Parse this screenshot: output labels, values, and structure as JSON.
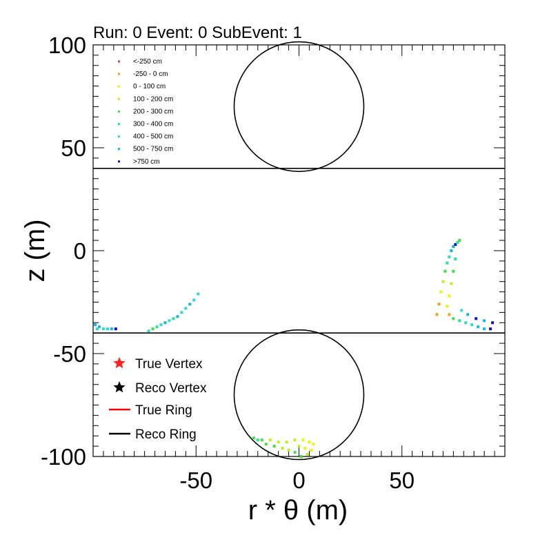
{
  "chart_data": {
    "type": "scatter",
    "title": "Run: 0  Event: 0  SubEvent: 1",
    "xlabel": "r * θ (m)",
    "ylabel": "z (m)",
    "xlim": [
      -100,
      100
    ],
    "ylim": [
      -100,
      100
    ],
    "x_ticks": [
      -50,
      0,
      50
    ],
    "y_ticks": [
      -100,
      -50,
      0,
      50,
      100
    ],
    "grid": false,
    "geometry": {
      "barrel_lines_z": [
        40,
        -40
      ],
      "endcap_circles": [
        {
          "name": "top-endcap",
          "center": [
            0,
            70
          ],
          "radius": 31.5
        },
        {
          "name": "bottom-endcap",
          "center": [
            0,
            -70
          ],
          "radius": 31.5
        }
      ]
    },
    "color_legend": {
      "position": "top-left",
      "entries": [
        {
          "label": "<-250 cm",
          "color": "#e8402a"
        },
        {
          "label": "-250 - 0 cm",
          "color": "#f0a020"
        },
        {
          "label": "0 - 100 cm",
          "color": "#f2f200"
        },
        {
          "label": "100 - 200 cm",
          "color": "#b8f020"
        },
        {
          "label": "200 - 300 cm",
          "color": "#40e040"
        },
        {
          "label": "300 - 400 cm",
          "color": "#20e890"
        },
        {
          "label": "400 - 500 cm",
          "color": "#30d8d0"
        },
        {
          "label": "500 - 750 cm",
          "color": "#10b8e0"
        },
        {
          "label": ">750 cm",
          "color": "#1010c0"
        }
      ]
    },
    "marker_legend": {
      "position": "bottom-left",
      "entries": [
        {
          "label": "True Vertex",
          "kind": "star",
          "color": "#ff2020"
        },
        {
          "label": "Reco Vertex",
          "kind": "star",
          "color": "#000000"
        },
        {
          "label": "True Ring",
          "kind": "line",
          "color": "#ff0000"
        },
        {
          "label": "Reco Ring",
          "kind": "line",
          "color": "#000000"
        }
      ]
    },
    "hit_clusters": [
      {
        "name": "barrel-right-ring",
        "points": [
          [
            67,
            -31
          ],
          [
            68,
            -26
          ],
          [
            69,
            -20
          ],
          [
            70,
            -15
          ],
          [
            71,
            -10
          ],
          [
            72,
            -6
          ],
          [
            73,
            -3
          ],
          [
            74,
            0
          ],
          [
            75,
            2
          ],
          [
            76,
            3
          ],
          [
            77,
            4
          ],
          [
            78,
            5
          ],
          [
            76,
            -4
          ],
          [
            75,
            -10
          ],
          [
            74,
            -16
          ],
          [
            73,
            -22
          ],
          [
            72,
            -27
          ],
          [
            73,
            -31
          ],
          [
            75,
            -33
          ],
          [
            78,
            -34
          ],
          [
            81,
            -35
          ],
          [
            84,
            -36
          ],
          [
            87,
            -37
          ],
          [
            90,
            -38
          ],
          [
            93,
            -38
          ],
          [
            79,
            -29
          ],
          [
            82,
            -31
          ],
          [
            86,
            -33
          ],
          [
            90,
            -34
          ],
          [
            94,
            -35
          ]
        ],
        "colors": [
          "#f0a020",
          "#f0a020",
          "#f2f200",
          "#b8f020",
          "#40e040",
          "#20e890",
          "#30d8d0",
          "#10b8e0",
          "#10b8e0",
          "#1010c0",
          "#20e890",
          "#40e040",
          "#20e890",
          "#40e040",
          "#b8f020",
          "#f2f200",
          "#f2f200",
          "#f0a020",
          "#40e040",
          "#20e890",
          "#30d8d0",
          "#30d8d0",
          "#10b8e0",
          "#10b8e0",
          "#1010c0",
          "#30d8d0",
          "#10b8e0",
          "#1010c0",
          "#10b8e0",
          "#1010c0"
        ]
      },
      {
        "name": "barrel-left-arc",
        "points": [
          [
            -49,
            -21
          ],
          [
            -51,
            -24
          ],
          [
            -53,
            -26
          ],
          [
            -55,
            -28
          ],
          [
            -57,
            -30
          ],
          [
            -59,
            -32
          ],
          [
            -61,
            -33
          ],
          [
            -63,
            -34
          ],
          [
            -65,
            -35
          ],
          [
            -67,
            -36
          ],
          [
            -69,
            -37
          ],
          [
            -71,
            -38
          ],
          [
            -73,
            -39
          ]
        ],
        "colors": [
          "#30d8d0",
          "#30d8d0",
          "#10b8e0",
          "#30d8d0",
          "#30d8d0",
          "#10b8e0",
          "#20e890",
          "#30d8d0",
          "#10b8e0",
          "#30d8d0",
          "#20e890",
          "#40e040",
          "#30d8d0"
        ]
      },
      {
        "name": "barrel-left-edge",
        "points": [
          [
            -99,
            -36
          ],
          [
            -97,
            -37
          ],
          [
            -95,
            -38
          ],
          [
            -93,
            -38
          ],
          [
            -91,
            -38
          ],
          [
            -89,
            -38
          ],
          [
            -98,
            -38
          ]
        ],
        "colors": [
          "#10b8e0",
          "#10b8e0",
          "#30d8d0",
          "#30d8d0",
          "#10b8e0",
          "#1010c0",
          "#30d8d0"
        ]
      },
      {
        "name": "bottom-endcap-hits",
        "points": [
          [
            -22,
            -91
          ],
          [
            -18,
            -92
          ],
          [
            -14,
            -92
          ],
          [
            -10,
            -93
          ],
          [
            -6,
            -93
          ],
          [
            -2,
            -92
          ],
          [
            2,
            -92
          ],
          [
            5,
            -93
          ],
          [
            7,
            -94
          ],
          [
            6,
            -97
          ],
          [
            4,
            -99
          ],
          [
            1,
            -100
          ],
          [
            -2,
            -98
          ],
          [
            -5,
            -97
          ],
          [
            -8,
            -96
          ],
          [
            -12,
            -95
          ],
          [
            -16,
            -94
          ],
          [
            -20,
            -92
          ],
          [
            3,
            -96
          ],
          [
            0,
            -95
          ]
        ],
        "colors": [
          "#40e040",
          "#40e040",
          "#b8f020",
          "#b8f020",
          "#b8f020",
          "#b8f020",
          "#f2f200",
          "#f2f200",
          "#f2f200",
          "#f2f200",
          "#b8f020",
          "#40e040",
          "#40e040",
          "#b8f020",
          "#b8f020",
          "#40e040",
          "#40e040",
          "#20e890",
          "#f2f200",
          "#b8f020"
        ]
      }
    ]
  }
}
